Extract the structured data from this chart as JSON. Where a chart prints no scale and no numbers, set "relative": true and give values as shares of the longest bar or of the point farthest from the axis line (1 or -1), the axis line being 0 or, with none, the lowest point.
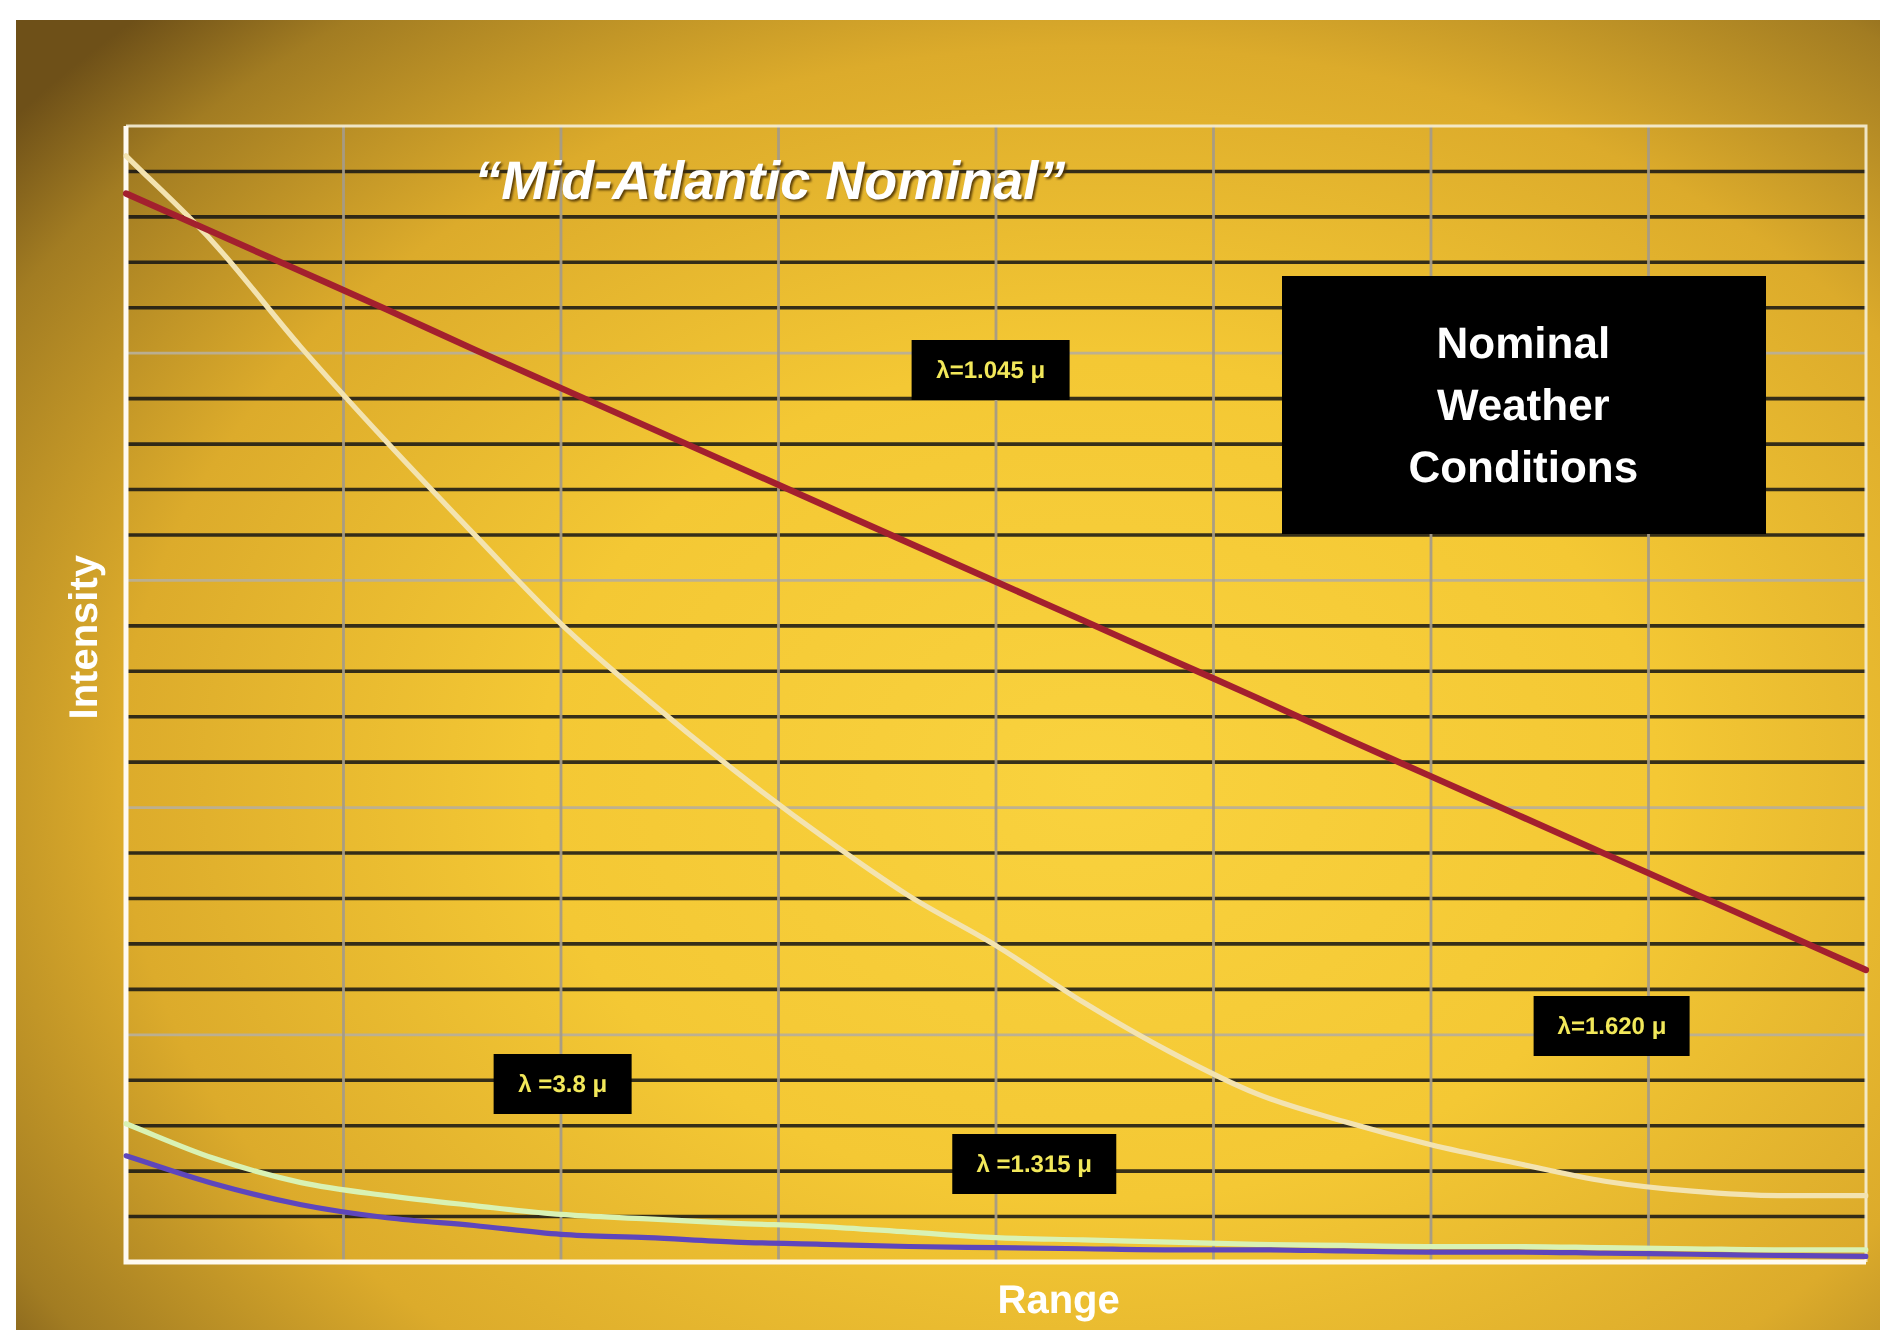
{
  "chart_data": {
    "type": "line",
    "title": "“Mid-Atlantic Nominal”",
    "xlabel": "Range",
    "ylabel": "Intensity",
    "annotations": [
      "Nominal Weather Conditions",
      "λ=1.045 μ",
      "λ=1.620 μ",
      "λ =3.8 μ",
      "λ =1.315 μ"
    ],
    "relative": true,
    "grid": true,
    "categories": [
      null,
      null,
      null,
      null,
      null,
      null,
      null,
      null,
      null,
      null,
      null,
      null,
      null,
      null,
      null,
      null,
      null,
      null,
      null,
      null,
      null
    ],
    "series": [
      {
        "color": "#a3202e",
        "values": [
          0.966,
          0.931,
          0.896,
          0.861,
          0.825,
          0.79,
          0.755,
          0.72,
          0.685,
          0.65,
          0.615,
          0.58,
          0.545,
          0.51,
          0.474,
          0.439,
          0.404,
          0.369,
          0.334,
          0.299,
          0.264
        ]
      },
      {
        "color": "#f3e3b0",
        "values": [
          1,
          0.922,
          0.828,
          0.741,
          0.658,
          0.577,
          0.508,
          0.444,
          0.385,
          0.331,
          0.286,
          0.235,
          0.19,
          0.152,
          0.127,
          0.106,
          0.089,
          0.073,
          0.064,
          0.06,
          0.06
        ]
      },
      {
        "color": "#d9f2b4",
        "values": [
          0.125,
          0.094,
          0.072,
          0.06,
          0.051,
          0.043,
          0.039,
          0.035,
          0.032,
          0.027,
          0.022,
          0.02,
          0.018,
          0.016,
          0.015,
          0.014,
          0.014,
          0.013,
          0.012,
          0.011,
          0.011
        ]
      },
      {
        "color": "#5e46bc",
        "values": [
          0.096,
          0.071,
          0.052,
          0.04,
          0.033,
          0.025,
          0.022,
          0.018,
          0.016,
          0.014,
          0.013,
          0.012,
          0.011,
          0.011,
          0.01,
          0.009,
          0.009,
          0.008,
          0.007,
          0.006,
          0.005
        ]
      }
    ]
  }
}
